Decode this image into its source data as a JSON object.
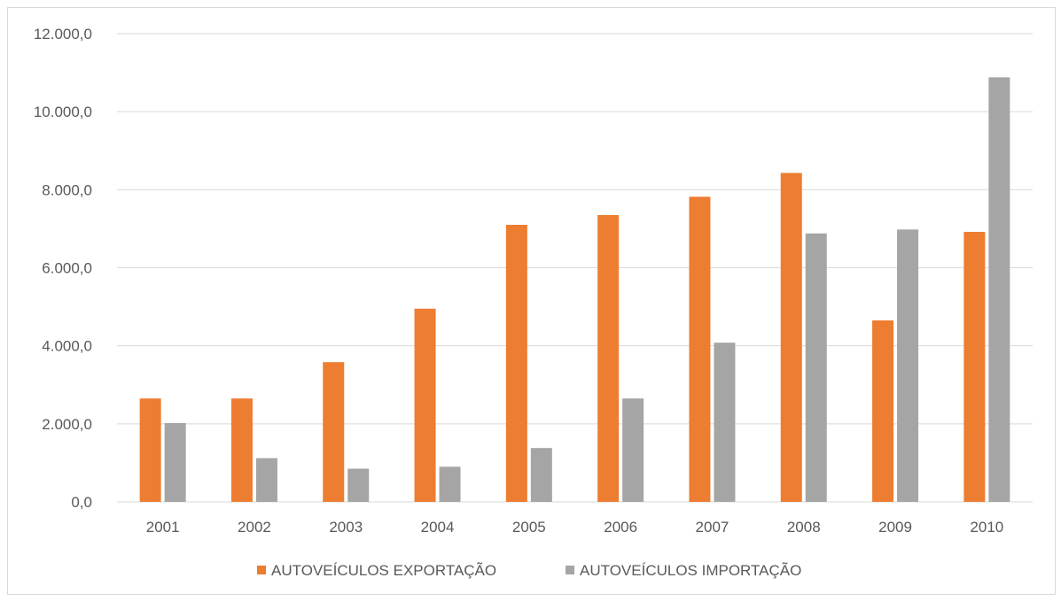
{
  "chart_data": {
    "type": "bar",
    "title": "",
    "xlabel": "",
    "ylabel": "",
    "categories": [
      "2001",
      "2002",
      "2003",
      "2004",
      "2005",
      "2006",
      "2007",
      "2008",
      "2009",
      "2010"
    ],
    "series": [
      {
        "name": "AUTOVEÍCULOS EXPORTAÇÃO",
        "color": "#ed7d31",
        "values": [
          2650,
          2650,
          3580,
          4950,
          7100,
          7350,
          7820,
          8430,
          4650,
          6920
        ]
      },
      {
        "name": "AUTOVEÍCULOS IMPORTAÇÃO",
        "color": "#a5a5a5",
        "values": [
          2020,
          1120,
          850,
          900,
          1380,
          2650,
          4080,
          6880,
          6980,
          10880
        ]
      }
    ],
    "ylim": [
      0,
      12000
    ],
    "yticks": [
      0,
      2000,
      4000,
      6000,
      8000,
      10000,
      12000
    ],
    "ytick_labels": [
      "0,0",
      "2.000,0",
      "4.000,0",
      "6.000,0",
      "8.000,0",
      "10.000,0",
      "12.000,0"
    ],
    "grid": true,
    "legend_position": "bottom"
  }
}
